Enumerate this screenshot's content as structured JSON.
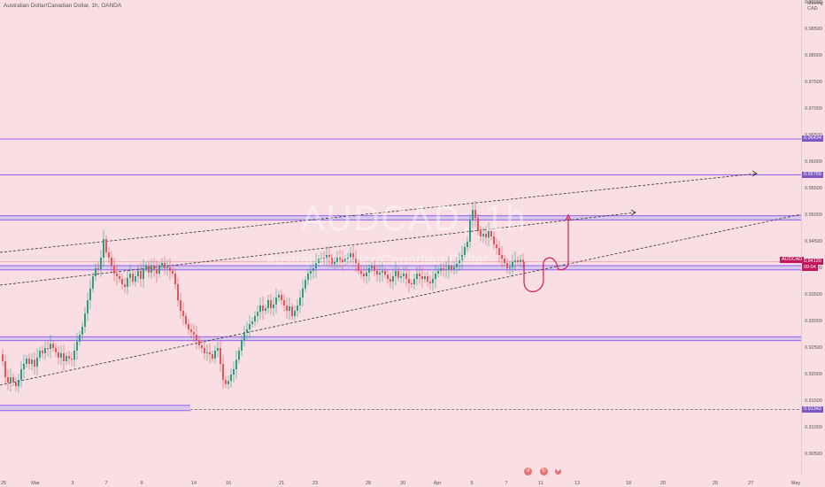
{
  "header": {
    "title": "Australian Dollar/Canadian Dollar, 1h, OANDA"
  },
  "watermark": {
    "symbol": "AUDCAD, 1h",
    "description": "Australian Dollar/Canadian Dollar"
  },
  "axis": {
    "currency_line1": "Moving",
    "currency_line2": "CAD"
  },
  "symbol_badge": "AUDCAD",
  "colors": {
    "background": "#f9dfe4",
    "level_line": "#9c5cf0",
    "zone_fill": "#b9b6f2",
    "up_candle": "#2e9e83",
    "down_candle": "#e8545a",
    "drawing": "#d81b4a",
    "price_badge": "#7e57c2",
    "current_badge": "#c2185b"
  },
  "chart_data": {
    "type": "candlestick",
    "title": "Australian Dollar/Canadian Dollar, 1h, OANDA",
    "ylim": [
      0.9005,
      0.99
    ],
    "y_ticks": [
      "0.99000",
      "0.98500",
      "0.98000",
      "0.97500",
      "0.97000",
      "0.96500",
      "0.96000",
      "0.95500",
      "0.95000",
      "0.94500",
      "0.94000",
      "0.93500",
      "0.93000",
      "0.92500",
      "0.92000",
      "0.91500",
      "0.91000",
      "0.90500"
    ],
    "x_ticks": [
      "25",
      "Mar",
      "3",
      "7",
      "9",
      "14",
      "16",
      "21",
      "23",
      "28",
      "30",
      "Apr",
      "5",
      "7",
      "11",
      "13",
      "18",
      "20",
      "25",
      "27",
      "May"
    ],
    "price_labels": [
      {
        "text": "0.96434",
        "value": 0.96434
      },
      {
        "text": "0.95759",
        "value": 0.95759
      },
      {
        "text": "0.94120",
        "value": 0.9412,
        "current": true
      },
      {
        "text": "09:04",
        "value": 0.9401,
        "current": true
      },
      {
        "text": "0.91342",
        "value": 0.91342
      }
    ],
    "horizontal_levels": [
      0.96434,
      0.95759
    ],
    "zones": [
      [
        0.9491,
        0.9499
      ],
      [
        0.9397,
        0.9405
      ],
      [
        0.9264,
        0.9271
      ],
      [
        0.9132,
        0.9142
      ]
    ],
    "dashed_level": 0.91342,
    "current_price": 0.9412,
    "candles_path": [
      [
        0,
        0.9238
      ],
      [
        3,
        0.9225
      ],
      [
        6,
        0.9195
      ],
      [
        9,
        0.9185
      ],
      [
        12,
        0.9195
      ],
      [
        15,
        0.9185
      ],
      [
        18,
        0.9178
      ],
      [
        21,
        0.919
      ],
      [
        24,
        0.921
      ],
      [
        27,
        0.922
      ],
      [
        30,
        0.923
      ],
      [
        33,
        0.922
      ],
      [
        36,
        0.9228
      ],
      [
        39,
        0.9215
      ],
      [
        42,
        0.9232
      ],
      [
        45,
        0.9245
      ],
      [
        48,
        0.924
      ],
      [
        51,
        0.925
      ],
      [
        54,
        0.9248
      ],
      [
        57,
        0.9258
      ],
      [
        60,
        0.925
      ],
      [
        63,
        0.9242
      ],
      [
        66,
        0.9232
      ],
      [
        69,
        0.924
      ],
      [
        72,
        0.9225
      ],
      [
        75,
        0.9235
      ],
      [
        78,
        0.923
      ],
      [
        81,
        0.9228
      ],
      [
        84,
        0.9245
      ],
      [
        87,
        0.9262
      ],
      [
        90,
        0.9275
      ],
      [
        93,
        0.929
      ],
      [
        96,
        0.9315
      ],
      [
        99,
        0.934
      ],
      [
        102,
        0.9362
      ],
      [
        105,
        0.9385
      ],
      [
        108,
        0.94
      ],
      [
        111,
        0.9398
      ],
      [
        114,
        0.942
      ],
      [
        117,
        0.9455
      ],
      [
        120,
        0.943
      ],
      [
        123,
        0.942
      ],
      [
        126,
        0.9405
      ],
      [
        129,
        0.939
      ],
      [
        132,
        0.9385
      ],
      [
        135,
        0.938
      ],
      [
        138,
        0.937
      ],
      [
        141,
        0.9365
      ],
      [
        144,
        0.9382
      ],
      [
        147,
        0.939
      ],
      [
        150,
        0.9375
      ],
      [
        153,
        0.9385
      ],
      [
        156,
        0.9395
      ],
      [
        159,
        0.938
      ],
      [
        162,
        0.94
      ],
      [
        165,
        0.9405
      ],
      [
        168,
        0.9392
      ],
      [
        171,
        0.9405
      ],
      [
        174,
        0.9398
      ],
      [
        177,
        0.939
      ],
      [
        180,
        0.9405
      ],
      [
        183,
        0.941
      ],
      [
        186,
        0.94
      ],
      [
        189,
        0.9402
      ],
      [
        192,
        0.9395
      ],
      [
        195,
        0.939
      ],
      [
        198,
        0.937
      ],
      [
        201,
        0.934
      ],
      [
        204,
        0.932
      ],
      [
        207,
        0.931
      ],
      [
        210,
        0.9295
      ],
      [
        213,
        0.9285
      ],
      [
        216,
        0.928
      ],
      [
        219,
        0.9275
      ],
      [
        222,
        0.9265
      ],
      [
        225,
        0.9255
      ],
      [
        228,
        0.925
      ],
      [
        231,
        0.924
      ],
      [
        234,
        0.9242
      ],
      [
        237,
        0.9238
      ],
      [
        240,
        0.923
      ],
      [
        243,
        0.9245
      ],
      [
        246,
        0.925
      ],
      [
        249,
        0.922
      ],
      [
        252,
        0.919
      ],
      [
        255,
        0.9182
      ],
      [
        258,
        0.9188
      ],
      [
        261,
        0.92
      ],
      [
        264,
        0.921
      ],
      [
        267,
        0.9228
      ],
      [
        270,
        0.9245
      ],
      [
        273,
        0.9265
      ],
      [
        276,
        0.928
      ],
      [
        279,
        0.9285
      ],
      [
        282,
        0.9295
      ],
      [
        285,
        0.93
      ],
      [
        288,
        0.931
      ],
      [
        291,
        0.9318
      ],
      [
        294,
        0.933
      ],
      [
        297,
        0.932
      ],
      [
        300,
        0.9325
      ],
      [
        303,
        0.934
      ],
      [
        306,
        0.9325
      ],
      [
        309,
        0.9332
      ],
      [
        312,
        0.9345
      ],
      [
        315,
        0.935
      ],
      [
        318,
        0.934
      ],
      [
        321,
        0.933
      ],
      [
        324,
        0.932
      ],
      [
        327,
        0.9328
      ],
      [
        330,
        0.931
      ],
      [
        333,
        0.932
      ],
      [
        336,
        0.933
      ],
      [
        339,
        0.9345
      ],
      [
        342,
        0.9362
      ],
      [
        345,
        0.9378
      ],
      [
        348,
        0.939
      ],
      [
        351,
        0.9395
      ],
      [
        354,
        0.94
      ],
      [
        357,
        0.941
      ],
      [
        360,
        0.9418
      ],
      [
        363,
        0.942
      ],
      [
        366,
        0.9418
      ],
      [
        369,
        0.9425
      ],
      [
        372,
        0.942
      ],
      [
        375,
        0.9408
      ],
      [
        378,
        0.9412
      ],
      [
        381,
        0.942
      ],
      [
        384,
        0.9416
      ],
      [
        387,
        0.9412
      ],
      [
        390,
        0.9418
      ],
      [
        393,
        0.942
      ],
      [
        396,
        0.9428
      ],
      [
        399,
        0.9418
      ],
      [
        402,
        0.941
      ],
      [
        405,
        0.9395
      ],
      [
        408,
        0.939
      ],
      [
        411,
        0.9385
      ],
      [
        414,
        0.9392
      ],
      [
        417,
        0.94
      ],
      [
        420,
        0.9405
      ],
      [
        423,
        0.9395
      ],
      [
        426,
        0.9388
      ],
      [
        429,
        0.9392
      ],
      [
        432,
        0.9395
      ],
      [
        435,
        0.9388
      ],
      [
        438,
        0.938
      ],
      [
        441,
        0.9375
      ],
      [
        444,
        0.9385
      ],
      [
        447,
        0.9395
      ],
      [
        450,
        0.9382
      ],
      [
        453,
        0.9385
      ],
      [
        456,
        0.939
      ],
      [
        459,
        0.938
      ],
      [
        462,
        0.9372
      ],
      [
        465,
        0.937
      ],
      [
        468,
        0.938
      ],
      [
        471,
        0.939
      ],
      [
        474,
        0.9385
      ],
      [
        477,
        0.938
      ],
      [
        480,
        0.9385
      ],
      [
        483,
        0.9375
      ],
      [
        486,
        0.9372
      ],
      [
        489,
        0.938
      ],
      [
        492,
        0.939
      ],
      [
        495,
        0.9395
      ],
      [
        498,
        0.94
      ],
      [
        501,
        0.9396
      ],
      [
        504,
        0.9398
      ],
      [
        507,
        0.9405
      ],
      [
        510,
        0.9398
      ],
      [
        513,
        0.9402
      ],
      [
        516,
        0.941
      ],
      [
        519,
        0.9415
      ],
      [
        522,
        0.9425
      ],
      [
        525,
        0.944
      ],
      [
        528,
        0.945
      ],
      [
        531,
        0.949
      ],
      [
        534,
        0.951
      ],
      [
        537,
        0.9495
      ],
      [
        540,
        0.947
      ],
      [
        543,
        0.946
      ],
      [
        546,
        0.9465
      ],
      [
        549,
        0.9458
      ],
      [
        552,
        0.947
      ],
      [
        555,
        0.946
      ],
      [
        558,
        0.9445
      ],
      [
        561,
        0.9438
      ],
      [
        564,
        0.9425
      ],
      [
        567,
        0.9418
      ],
      [
        570,
        0.941
      ],
      [
        573,
        0.94
      ],
      [
        576,
        0.9402
      ],
      [
        579,
        0.9412
      ],
      [
        582,
        0.9415
      ],
      [
        585,
        0.9412
      ],
      [
        588,
        0.9416
      ],
      [
        591,
        0.9412
      ]
    ]
  }
}
